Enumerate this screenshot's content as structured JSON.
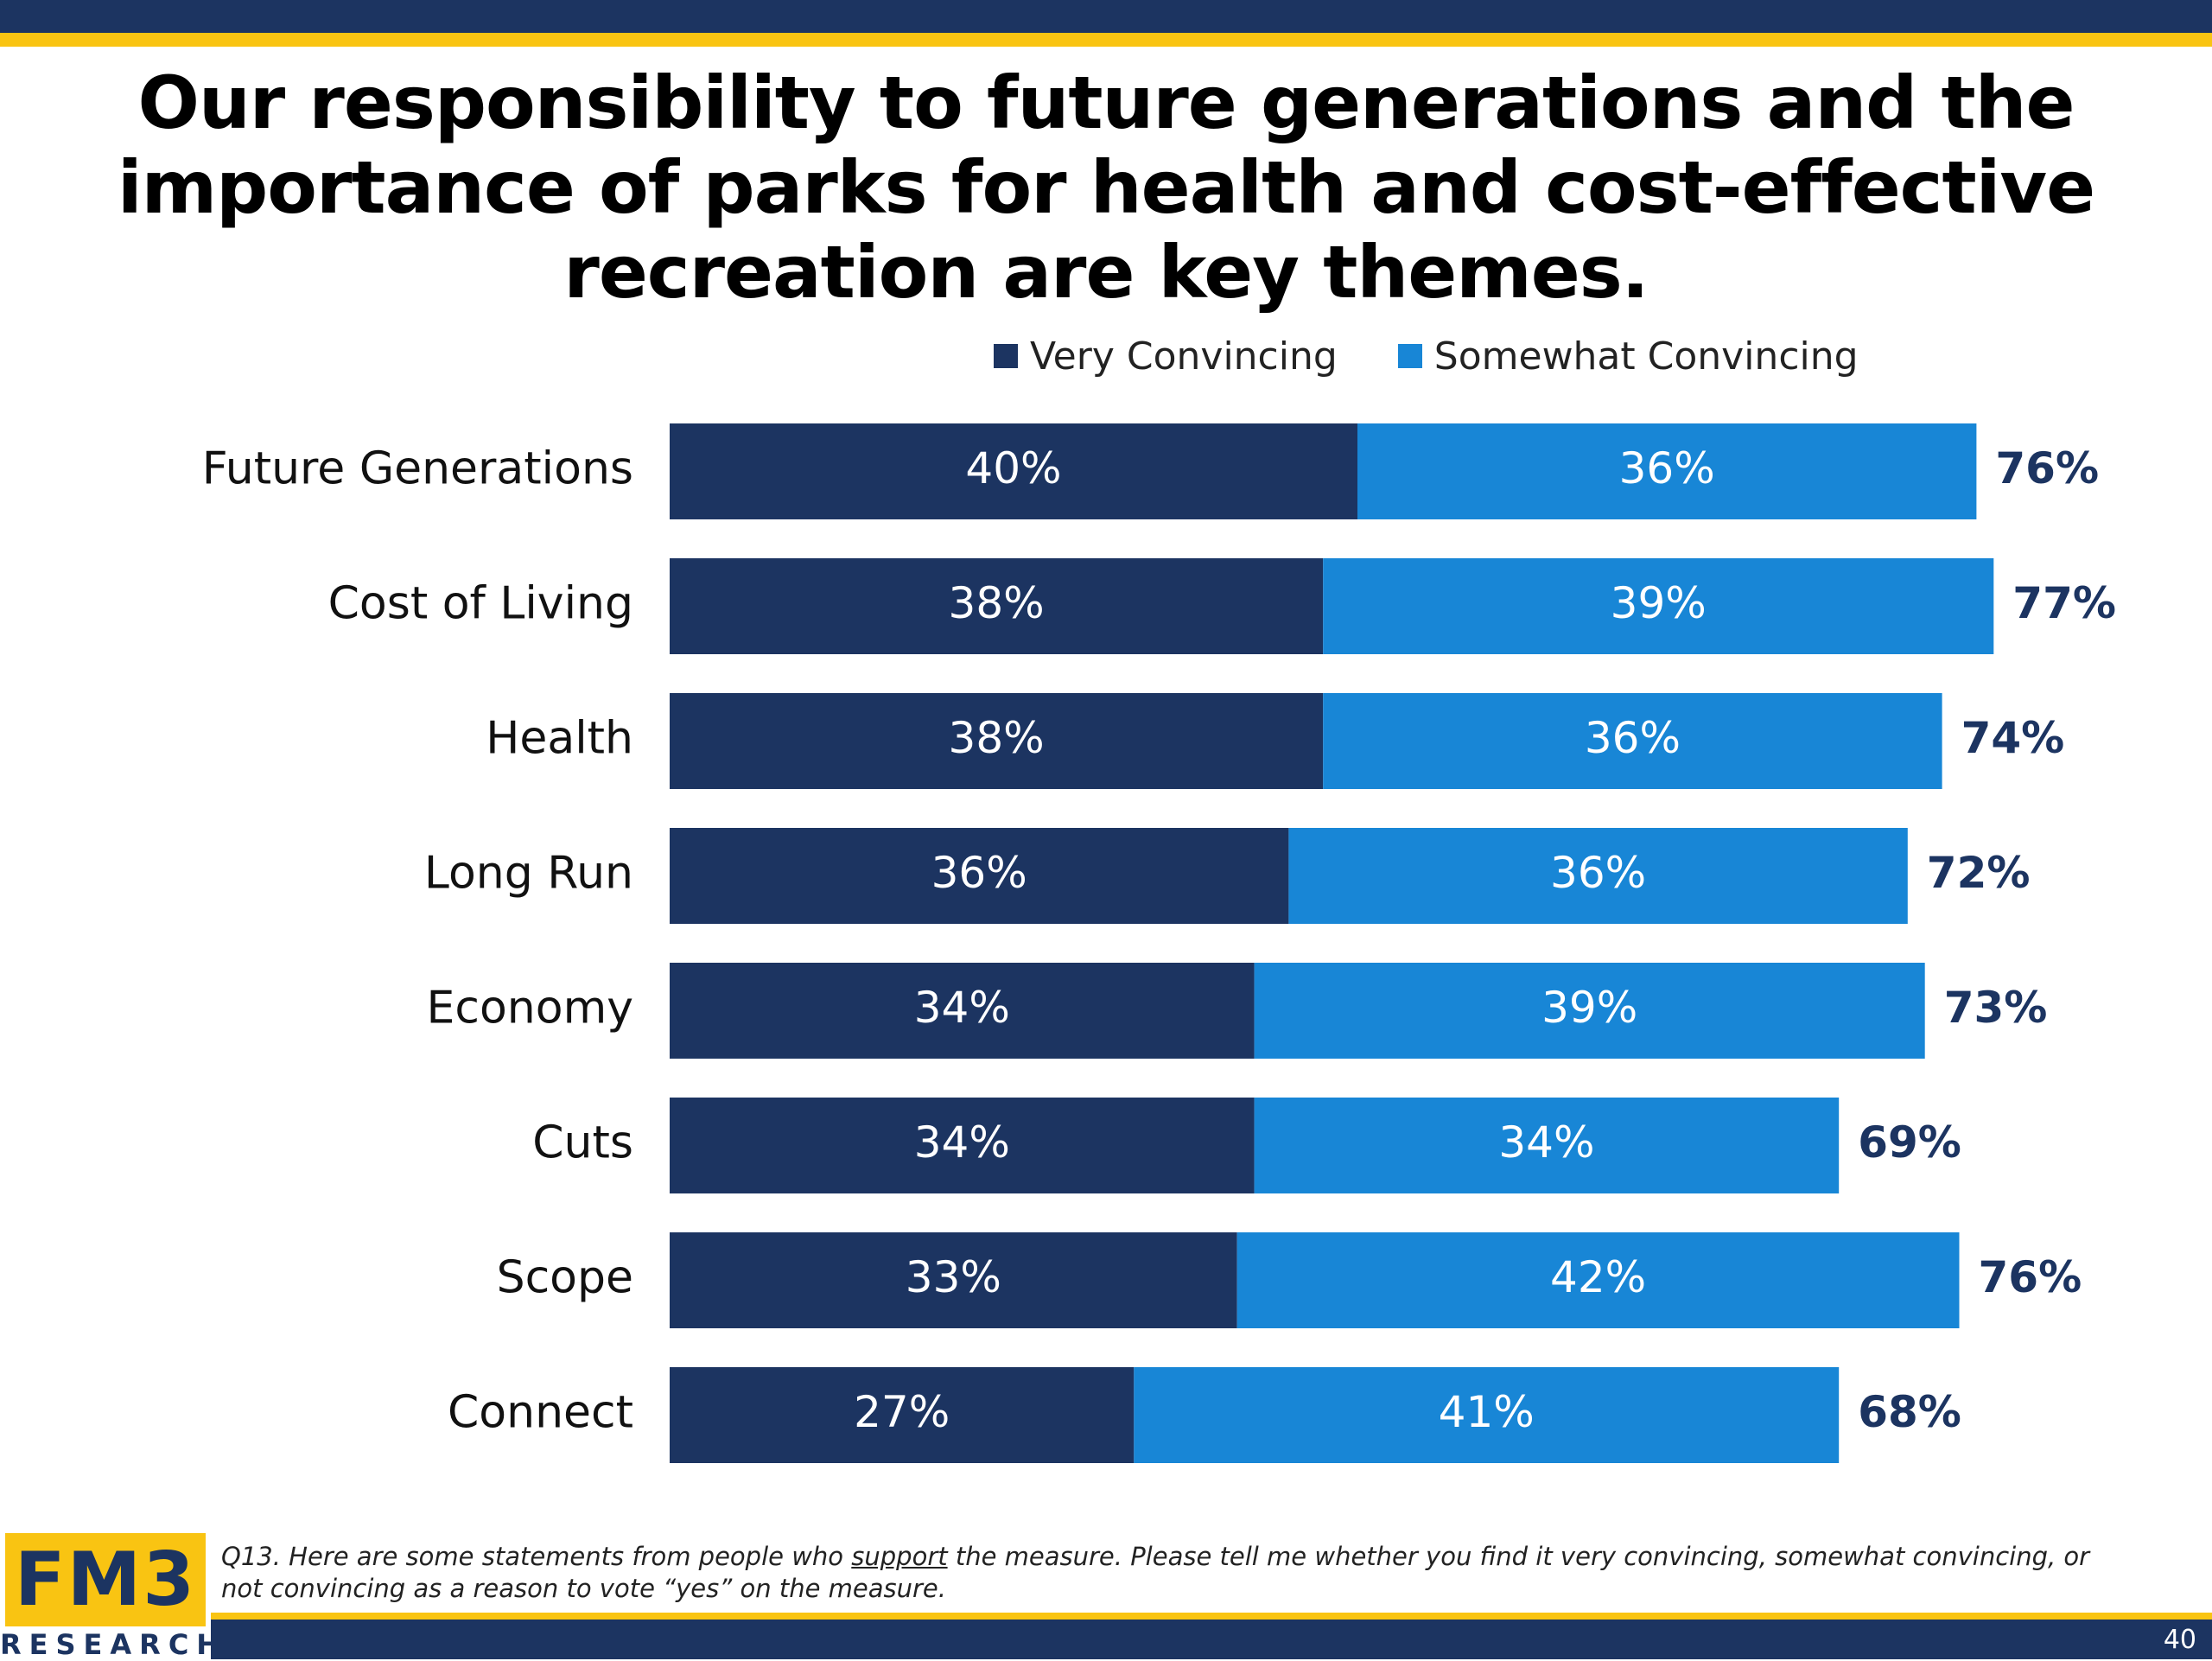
{
  "slide": {
    "title": "Our responsibility to future generations and the importance of parks for health and cost-effective recreation are key themes.",
    "footnote": {
      "part1": "Q13. Here are some statements from people who ",
      "underlined": "support",
      "part2": " the measure. Please tell me whether you find it very convincing, somewhat convincing, or not convincing as a reason to vote “yes” on the measure."
    },
    "page_number": "40",
    "logo": {
      "main": "FM3",
      "sub": "RESEARCH"
    }
  },
  "colors": {
    "very": "#1c3461",
    "somewhat": "#1886d6",
    "accent": "#f9c412",
    "total_text": "#1c3461"
  },
  "chart_data": {
    "type": "bar",
    "orientation": "horizontal",
    "stacked": true,
    "categories": [
      "Future Generations",
      "Cost of Living",
      "Health",
      "Long Run",
      "Economy",
      "Cuts",
      "Scope",
      "Connect"
    ],
    "series": [
      {
        "name": "Very Convincing",
        "values": [
          40,
          38,
          38,
          36,
          34,
          34,
          33,
          27
        ],
        "labels": [
          "40%",
          "38%",
          "38%",
          "36%",
          "34%",
          "34%",
          "33%",
          "27%"
        ]
      },
      {
        "name": "Somewhat Convincing",
        "values": [
          36,
          39,
          36,
          36,
          39,
          34,
          42,
          41
        ],
        "labels": [
          "36%",
          "39%",
          "36%",
          "36%",
          "39%",
          "34%",
          "42%",
          "41%"
        ]
      }
    ],
    "totals": [
      76,
      77,
      74,
      72,
      73,
      69,
      76,
      68
    ],
    "total_labels": [
      "76%",
      "77%",
      "74%",
      "72%",
      "73%",
      "69%",
      "76%",
      "68%"
    ],
    "xlim": [
      0,
      77
    ],
    "legend_position": "top",
    "grid": false
  }
}
